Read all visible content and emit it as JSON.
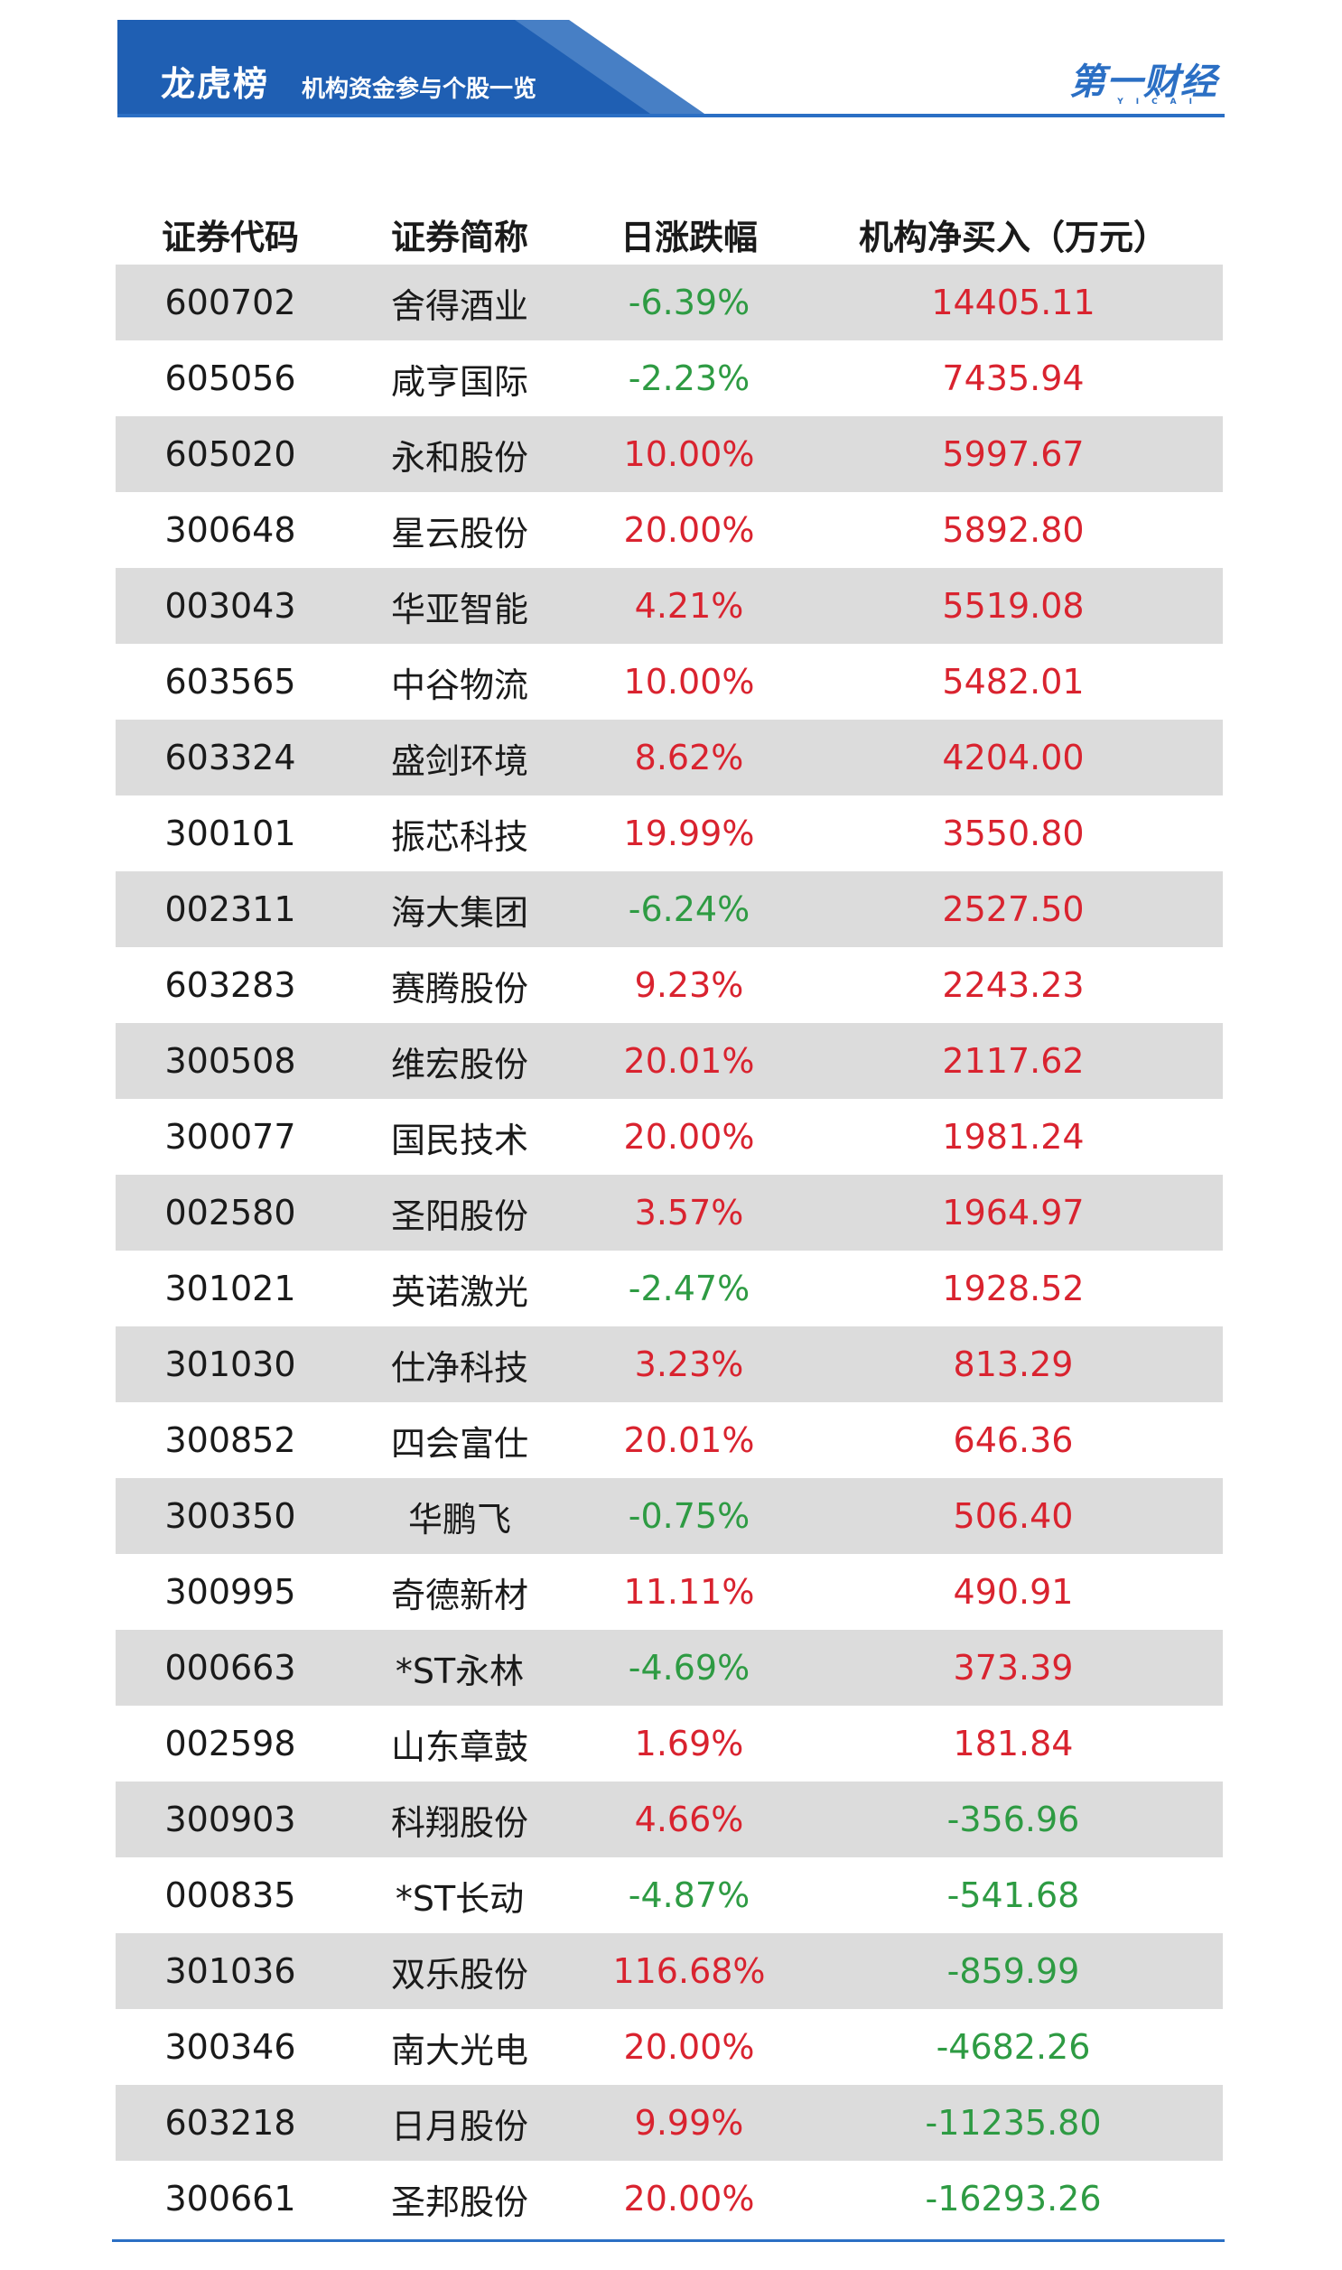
{
  "header": {
    "title": "龙虎榜",
    "subtitle": "机构资金参与个股一览",
    "logo": "第一财经",
    "logo_sub": "YICAI",
    "colors": {
      "banner": "#1f5fb3",
      "accent": "#2b6fc4",
      "up": "#d9232f",
      "down": "#2e9b43"
    }
  },
  "table": {
    "headers": [
      "证券代码",
      "证券简称",
      "日涨跌幅",
      "机构净买入（万元）"
    ],
    "rows": [
      {
        "code": "600702",
        "name": "舍得酒业",
        "change": "-6.39%",
        "net": "14405.11"
      },
      {
        "code": "605056",
        "name": "咸亨国际",
        "change": "-2.23%",
        "net": "7435.94"
      },
      {
        "code": "605020",
        "name": "永和股份",
        "change": "10.00%",
        "net": "5997.67"
      },
      {
        "code": "300648",
        "name": "星云股份",
        "change": "20.00%",
        "net": "5892.80"
      },
      {
        "code": "003043",
        "name": "华亚智能",
        "change": "4.21%",
        "net": "5519.08"
      },
      {
        "code": "603565",
        "name": "中谷物流",
        "change": "10.00%",
        "net": "5482.01"
      },
      {
        "code": "603324",
        "name": "盛剑环境",
        "change": "8.62%",
        "net": "4204.00"
      },
      {
        "code": "300101",
        "name": "振芯科技",
        "change": "19.99%",
        "net": "3550.80"
      },
      {
        "code": "002311",
        "name": "海大集团",
        "change": "-6.24%",
        "net": "2527.50"
      },
      {
        "code": "603283",
        "name": "赛腾股份",
        "change": "9.23%",
        "net": "2243.23"
      },
      {
        "code": "300508",
        "name": "维宏股份",
        "change": "20.01%",
        "net": "2117.62"
      },
      {
        "code": "300077",
        "name": "国民技术",
        "change": "20.00%",
        "net": "1981.24"
      },
      {
        "code": "002580",
        "name": "圣阳股份",
        "change": "3.57%",
        "net": "1964.97"
      },
      {
        "code": "301021",
        "name": "英诺激光",
        "change": "-2.47%",
        "net": "1928.52"
      },
      {
        "code": "301030",
        "name": "仕净科技",
        "change": "3.23%",
        "net": "813.29"
      },
      {
        "code": "300852",
        "name": "四会富仕",
        "change": "20.01%",
        "net": "646.36"
      },
      {
        "code": "300350",
        "name": "华鹏飞",
        "change": "-0.75%",
        "net": "506.40"
      },
      {
        "code": "300995",
        "name": "奇德新材",
        "change": "11.11%",
        "net": "490.91"
      },
      {
        "code": "000663",
        "name": "*ST永林",
        "change": "-4.69%",
        "net": "373.39"
      },
      {
        "code": "002598",
        "name": "山东章鼓",
        "change": "1.69%",
        "net": "181.84"
      },
      {
        "code": "300903",
        "name": "科翔股份",
        "change": "4.66%",
        "net": "-356.96"
      },
      {
        "code": "000835",
        "name": "*ST长动",
        "change": "-4.87%",
        "net": "-541.68"
      },
      {
        "code": "301036",
        "name": "双乐股份",
        "change": "116.68%",
        "net": "-859.99"
      },
      {
        "code": "300346",
        "name": "南大光电",
        "change": "20.00%",
        "net": "-4682.26"
      },
      {
        "code": "603218",
        "name": "日月股份",
        "change": "9.99%",
        "net": "-11235.80"
      },
      {
        "code": "300661",
        "name": "圣邦股份",
        "change": "20.00%",
        "net": "-16293.26"
      }
    ]
  }
}
